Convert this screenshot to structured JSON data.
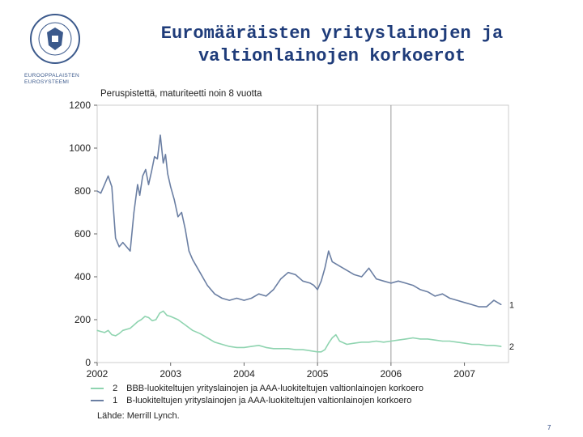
{
  "slide": {
    "title_line1": "Euromääräisten yrityslainojen ja",
    "title_line2": "valtionlainojen korkoerot",
    "logo_text_line1": "EUROOPPALAISTEN",
    "logo_text_line2": "EUROSYSTEEMI",
    "page_number": "7",
    "source": "Lähde: Merrill Lynch."
  },
  "chart_data": {
    "type": "line",
    "ylabel": "Peruspistettä, maturiteetti noin 8 vuotta",
    "ylim": [
      0,
      1200
    ],
    "yticks": [
      "0",
      "200",
      "400",
      "600",
      "800",
      "1000",
      "1200"
    ],
    "xlim": [
      2002.0,
      2007.6
    ],
    "xticks": [
      "2002",
      "2003",
      "2004",
      "2005",
      "2006",
      "2007"
    ],
    "vertical_markers": [
      2005.0,
      2006.0
    ],
    "colors": {
      "series1": "#6b7fa3",
      "series2": "#8fd4b0",
      "grid": "#999999"
    },
    "series": [
      {
        "id": "1",
        "name": "B-luokiteltujen yrityslainojen ja AAA-luokiteltujen valtionlainojen korkoero",
        "x": [
          2002.0,
          2002.05,
          2002.1,
          2002.15,
          2002.2,
          2002.25,
          2002.3,
          2002.35,
          2002.45,
          2002.5,
          2002.55,
          2002.58,
          2002.62,
          2002.66,
          2002.7,
          2002.74,
          2002.78,
          2002.82,
          2002.86,
          2002.9,
          2002.93,
          2002.96,
          2003.0,
          2003.05,
          2003.1,
          2003.15,
          2003.2,
          2003.25,
          2003.3,
          2003.4,
          2003.5,
          2003.6,
          2003.7,
          2003.8,
          2003.9,
          2004.0,
          2004.1,
          2004.2,
          2004.3,
          2004.4,
          2004.5,
          2004.6,
          2004.7,
          2004.8,
          2004.9,
          2004.95,
          2005.0,
          2005.05,
          2005.1,
          2005.15,
          2005.2,
          2005.25,
          2005.3,
          2005.4,
          2005.5,
          2005.6,
          2005.7,
          2005.8,
          2005.9,
          2006.0,
          2006.1,
          2006.2,
          2006.3,
          2006.4,
          2006.5,
          2006.6,
          2006.7,
          2006.8,
          2006.9,
          2007.0,
          2007.1,
          2007.2,
          2007.3,
          2007.4,
          2007.5
        ],
        "values": [
          800,
          790,
          830,
          870,
          820,
          580,
          540,
          560,
          520,
          700,
          830,
          780,
          870,
          900,
          830,
          890,
          960,
          950,
          1060,
          930,
          970,
          880,
          820,
          760,
          680,
          700,
          620,
          520,
          480,
          420,
          360,
          320,
          300,
          290,
          300,
          290,
          300,
          320,
          310,
          340,
          390,
          420,
          410,
          380,
          370,
          360,
          340,
          380,
          440,
          520,
          470,
          460,
          450,
          430,
          410,
          400,
          440,
          390,
          380,
          370,
          380,
          370,
          360,
          340,
          330,
          310,
          320,
          300,
          290,
          280,
          270,
          260,
          260,
          290,
          270
        ]
      },
      {
        "id": "2",
        "name": "BBB-luokiteltujen yrityslainojen ja AAA-luokiteltujen valtionlainojen korkoero",
        "x": [
          2002.0,
          2002.05,
          2002.1,
          2002.15,
          2002.2,
          2002.25,
          2002.3,
          2002.35,
          2002.45,
          2002.5,
          2002.55,
          2002.6,
          2002.65,
          2002.7,
          2002.75,
          2002.8,
          2002.85,
          2002.9,
          2002.95,
          2003.0,
          2003.1,
          2003.2,
          2003.3,
          2003.4,
          2003.5,
          2003.6,
          2003.7,
          2003.8,
          2003.9,
          2004.0,
          2004.1,
          2004.2,
          2004.3,
          2004.4,
          2004.5,
          2004.6,
          2004.7,
          2004.8,
          2004.9,
          2005.0,
          2005.05,
          2005.1,
          2005.15,
          2005.2,
          2005.25,
          2005.3,
          2005.4,
          2005.5,
          2005.6,
          2005.7,
          2005.8,
          2005.9,
          2006.0,
          2006.1,
          2006.2,
          2006.3,
          2006.4,
          2006.5,
          2006.6,
          2006.7,
          2006.8,
          2006.9,
          2007.0,
          2007.1,
          2007.2,
          2007.3,
          2007.4,
          2007.5
        ],
        "values": [
          150,
          145,
          140,
          150,
          130,
          125,
          135,
          150,
          160,
          175,
          190,
          200,
          215,
          210,
          195,
          200,
          230,
          240,
          220,
          215,
          200,
          175,
          150,
          135,
          115,
          95,
          85,
          75,
          70,
          70,
          75,
          80,
          70,
          65,
          65,
          65,
          60,
          60,
          55,
          50,
          50,
          60,
          90,
          115,
          130,
          100,
          85,
          90,
          95,
          95,
          100,
          95,
          100,
          105,
          110,
          115,
          110,
          110,
          105,
          100,
          100,
          95,
          90,
          85,
          85,
          80,
          80,
          75
        ]
      }
    ],
    "series_labels": [
      "1",
      "2"
    ],
    "legend": [
      {
        "num": "2",
        "label": "BBB-luokiteltujen yrityslainojen ja AAA-luokiteltujen valtionlainojen korkoero"
      },
      {
        "num": "1",
        "label": "B-luokiteltujen yrityslainojen ja AAA-luokiteltujen valtionlainojen korkoero"
      }
    ]
  }
}
